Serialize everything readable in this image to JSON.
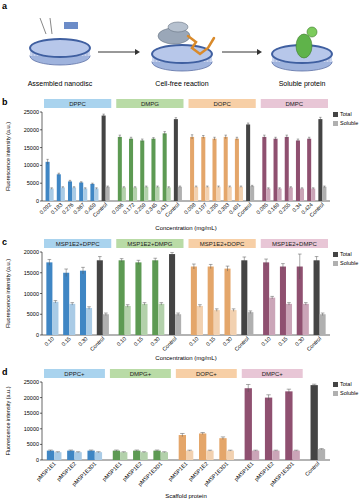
{
  "diagram": {
    "label": "a",
    "steps": [
      "Assembled nanodisc",
      "Cell-free reaction",
      "Soluble protein"
    ]
  },
  "chart_data": [
    {
      "type": "bar",
      "annotation": "b",
      "y_label": "Fluorescence intensity (a.u.)",
      "x_label": "Concentration (mg/mL)",
      "ylim": [
        0,
        25000
      ],
      "yticks": [
        0,
        5000,
        10000,
        15000,
        20000,
        25000
      ],
      "legend": "right",
      "groups": [
        {
          "title": "DPPC",
          "color": "#a9d3ee"
        },
        {
          "title": "DMPG",
          "color": "#b9dba6"
        },
        {
          "title": "DOPC",
          "color": "#f7cfa6"
        },
        {
          "title": "DMPC",
          "color": "#e8c6d6"
        }
      ],
      "categories": [
        [
          "0.092",
          "0.183",
          "0.276",
          "0.367",
          "0.459",
          "Control"
        ],
        [
          "0.086",
          "0.172",
          "0.259",
          "0.345",
          "0.431",
          "Control"
        ],
        [
          "0.098",
          "0.197",
          "0.295",
          "0.393",
          "0.491",
          "Control"
        ],
        [
          "0.085",
          "0.169",
          "0.255",
          "0.34",
          "0.424",
          "Control"
        ]
      ],
      "series": [
        {
          "name": "Total",
          "color": "#444444",
          "colors": [
            [
              "#3f86c4",
              "#3f86c4",
              "#3f86c4",
              "#3f86c4",
              "#3f86c4",
              "#444444"
            ],
            [
              "#5d9a53",
              "#5d9a53",
              "#5d9a53",
              "#5d9a53",
              "#5d9a53",
              "#444444"
            ],
            [
              "#e4a66a",
              "#e4a66a",
              "#e4a66a",
              "#e4a66a",
              "#e4a66a",
              "#444444"
            ],
            [
              "#8f5070",
              "#8f5070",
              "#8f5070",
              "#8f5070",
              "#8f5070",
              "#444444"
            ]
          ],
          "values": [
            [
              11000,
              7500,
              5500,
              5200,
              4800,
              24000
            ],
            [
              18000,
              17500,
              17000,
              17500,
              19000,
              23000
            ],
            [
              18000,
              18000,
              17500,
              18000,
              17500,
              21500
            ],
            [
              18000,
              17500,
              18000,
              17000,
              17500,
              23000
            ]
          ],
          "errors": [
            [
              700,
              300,
              300,
              200,
              200,
              400
            ],
            [
              500,
              400,
              400,
              300,
              500,
              400
            ],
            [
              600,
              400,
              400,
              500,
              400,
              400
            ],
            [
              500,
              400,
              500,
              400,
              400,
              500
            ]
          ]
        },
        {
          "name": "Soluble",
          "color": "#b0b0b0",
          "colors": [
            [
              "#a9cbe6",
              "#a9cbe6",
              "#a9cbe6",
              "#a9cbe6",
              "#a9cbe6",
              "#b0b0b0"
            ],
            [
              "#b3d1ab",
              "#b3d1ab",
              "#b3d1ab",
              "#b3d1ab",
              "#b3d1ab",
              "#b0b0b0"
            ],
            [
              "#f2d1b0",
              "#f2d1b0",
              "#f2d1b0",
              "#f2d1b0",
              "#f2d1b0",
              "#b0b0b0"
            ],
            [
              "#cba5b8",
              "#cba5b8",
              "#cba5b8",
              "#cba5b8",
              "#cba5b8",
              "#b0b0b0"
            ]
          ],
          "values": [
            [
              3500,
              3800,
              3800,
              3500,
              3500,
              4000
            ],
            [
              3800,
              3800,
              4000,
              4000,
              3800,
              4000
            ],
            [
              4000,
              4000,
              4000,
              4000,
              4000,
              4200
            ],
            [
              3500,
              3500,
              3800,
              3500,
              3500,
              4000
            ]
          ],
          "errors": [
            [
              200,
              200,
              200,
              200,
              200,
              200
            ],
            [
              200,
              200,
              200,
              200,
              200,
              200
            ],
            [
              200,
              200,
              200,
              200,
              200,
              200
            ],
            [
              200,
              200,
              200,
              200,
              200,
              200
            ]
          ]
        }
      ]
    },
    {
      "type": "bar",
      "annotation": "c",
      "y_label": "Fluorescence intensity (a.u.)",
      "x_label": "Concentration (mg/mL)",
      "ylim": [
        0,
        20000
      ],
      "yticks": [
        0,
        5000,
        10000,
        15000,
        20000
      ],
      "legend": "right",
      "groups": [
        {
          "title": "MSP1E2+DPPC",
          "color": "#a9d3ee"
        },
        {
          "title": "MSP1E2+DMPG",
          "color": "#b9dba6"
        },
        {
          "title": "MSP1E2+DOPC",
          "color": "#f7cfa6"
        },
        {
          "title": "MSP1E2+DMPC",
          "color": "#e8c6d6"
        }
      ],
      "categories": [
        [
          "0.10",
          "0.15",
          "0.30",
          "Control"
        ],
        [
          "0.10",
          "0.15",
          "0.30",
          "Control"
        ],
        [
          "0.10",
          "0.15",
          "0.30",
          "Control"
        ],
        [
          "0.10",
          "0.15",
          "0.30",
          "Control"
        ]
      ],
      "series": [
        {
          "name": "Total",
          "color": "#444444",
          "colors": [
            [
              "#3f86c4",
              "#3f86c4",
              "#3f86c4",
              "#444444"
            ],
            [
              "#5d9a53",
              "#5d9a53",
              "#5d9a53",
              "#444444"
            ],
            [
              "#e4a66a",
              "#e4a66a",
              "#e4a66a",
              "#444444"
            ],
            [
              "#8f5070",
              "#8f5070",
              "#8f5070",
              "#444444"
            ]
          ],
          "values": [
            [
              17500,
              15000,
              15500,
              18000
            ],
            [
              18000,
              17500,
              18000,
              19500
            ],
            [
              16500,
              16500,
              16000,
              18000
            ],
            [
              17500,
              16500,
              16500,
              18000
            ]
          ],
          "errors": [
            [
              700,
              900,
              800,
              900
            ],
            [
              400,
              500,
              500,
              400
            ],
            [
              600,
              500,
              600,
              800
            ],
            [
              800,
              700,
              3000,
              900
            ]
          ]
        },
        {
          "name": "Soluble",
          "color": "#b0b0b0",
          "colors": [
            [
              "#a9cbe6",
              "#a9cbe6",
              "#a9cbe6",
              "#b0b0b0"
            ],
            [
              "#b3d1ab",
              "#b3d1ab",
              "#b3d1ab",
              "#b0b0b0"
            ],
            [
              "#f2d1b0",
              "#f2d1b0",
              "#f2d1b0",
              "#b0b0b0"
            ],
            [
              "#cba5b8",
              "#cba5b8",
              "#cba5b8",
              "#b0b0b0"
            ]
          ],
          "values": [
            [
              8000,
              7500,
              6500,
              5000
            ],
            [
              7000,
              7500,
              7500,
              5000
            ],
            [
              7000,
              6000,
              6000,
              5500
            ],
            [
              9000,
              7500,
              7500,
              5000
            ]
          ],
          "errors": [
            [
              300,
              300,
              300,
              300
            ],
            [
              300,
              300,
              300,
              300
            ],
            [
              300,
              300,
              300,
              300
            ],
            [
              300,
              300,
              300,
              300
            ]
          ]
        }
      ]
    },
    {
      "type": "bar",
      "annotation": "d",
      "y_label": "Fluorescence intensity (a.u.)",
      "x_label": "Scaffold protein",
      "ylim": [
        0,
        25000
      ],
      "yticks": [
        0,
        5000,
        10000,
        15000,
        20000,
        25000
      ],
      "legend": "right",
      "groups": [
        {
          "title": "DPPC+",
          "color": "#a9d3ee"
        },
        {
          "title": "DMPG+",
          "color": "#b9dba6"
        },
        {
          "title": "DOPC+",
          "color": "#f7cfa6"
        },
        {
          "title": "DMPC+",
          "color": "#e8c6d6"
        }
      ],
      "categories": [
        [
          "pMSP1E1",
          "pMSP1E2",
          "pMSP1E3D1"
        ],
        [
          "pMSP1E1",
          "pMSP1E2",
          "pMSP1E3D1"
        ],
        [
          "pMSP1E1",
          "pMSP1E2",
          "pMSP1E3D1"
        ],
        [
          "pMSP1E1",
          "pMSP1E2",
          "pMSP1E3D1"
        ],
        [
          "Control"
        ]
      ],
      "series": [
        {
          "name": "Total",
          "color": "#444444",
          "colors": [
            [
              "#3f86c4",
              "#3f86c4",
              "#3f86c4"
            ],
            [
              "#5d9a53",
              "#5d9a53",
              "#5d9a53"
            ],
            [
              "#e4a66a",
              "#e4a66a",
              "#e4a66a"
            ],
            [
              "#8f5070",
              "#8f5070",
              "#8f5070"
            ],
            [
              "#444444"
            ]
          ],
          "values": [
            [
              3000,
              3000,
              3000
            ],
            [
              3000,
              3000,
              3000
            ],
            [
              8000,
              8500,
              7000
            ],
            [
              23000,
              20000,
              22000
            ],
            [
              24000
            ]
          ],
          "errors": [
            [
              200,
              200,
              200
            ],
            [
              200,
              200,
              200
            ],
            [
              500,
              300,
              400
            ],
            [
              1200,
              900,
              700
            ],
            [
              300
            ]
          ]
        },
        {
          "name": "Soluble",
          "color": "#b0b0b0",
          "colors": [
            [
              "#a9cbe6",
              "#a9cbe6",
              "#a9cbe6"
            ],
            [
              "#b3d1ab",
              "#b3d1ab",
              "#b3d1ab"
            ],
            [
              "#f2d1b0",
              "#f2d1b0",
              "#f2d1b0"
            ],
            [
              "#cba5b8",
              "#cba5b8",
              "#cba5b8"
            ],
            [
              "#b0b0b0"
            ]
          ],
          "values": [
            [
              2500,
              2500,
              2500
            ],
            [
              2500,
              2500,
              2500
            ],
            [
              3000,
              3000,
              3000
            ],
            [
              3000,
              3000,
              3000
            ],
            [
              3500
            ]
          ],
          "errors": [
            [
              150,
              150,
              150
            ],
            [
              150,
              150,
              150
            ],
            [
              150,
              150,
              150
            ],
            [
              150,
              150,
              150
            ],
            [
              150
            ]
          ]
        }
      ]
    }
  ]
}
